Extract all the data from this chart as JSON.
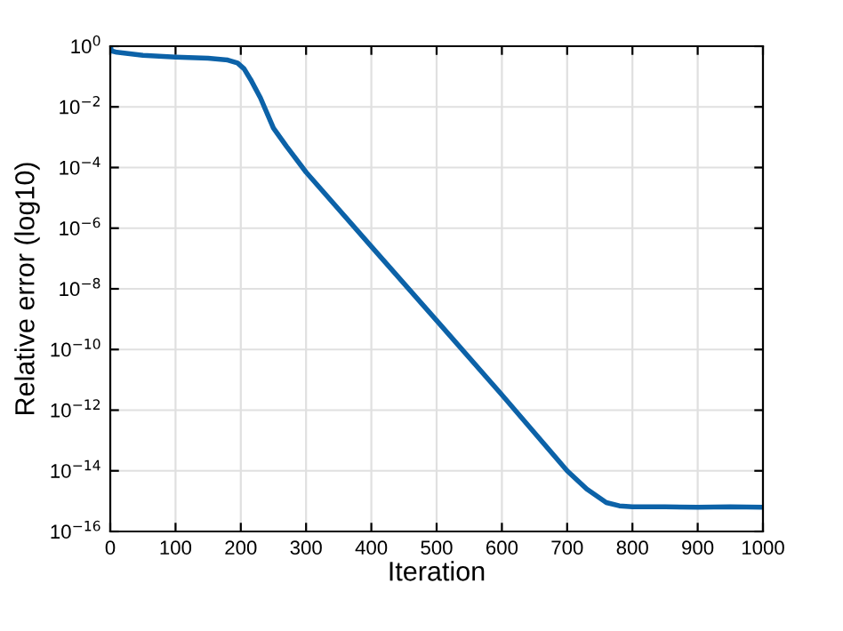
{
  "chart_data": {
    "type": "line",
    "xlabel": "Iteration",
    "ylabel": "Relative error (log10)",
    "log": "y",
    "grid": true,
    "marker": "none",
    "line_style": "solid",
    "x": [
      0,
      2,
      10,
      50,
      100,
      150,
      180,
      195,
      205,
      215,
      230,
      250,
      270,
      300,
      400,
      500,
      600,
      700,
      730,
      760,
      780,
      800,
      850,
      900,
      950,
      1000
    ],
    "series": [
      {
        "color": "#0c62a8",
        "values": [
          1,
          0.7,
          0.63,
          0.5,
          0.44,
          0.4,
          0.35,
          0.28,
          0.18,
          0.08,
          0.02,
          0.002,
          0.0005,
          7e-05,
          2.5e-07,
          9e-10,
          3.2e-12,
          1e-14,
          2.5e-15,
          9e-16,
          7e-16,
          6.5e-16,
          6.5e-16,
          6.3e-16,
          6.5e-16,
          6.3e-16
        ]
      }
    ],
    "xlim": [
      0,
      1000
    ],
    "xticks": [
      0,
      100,
      200,
      300,
      400,
      500,
      600,
      700,
      800,
      900,
      1000
    ],
    "ylim": [
      1e-16,
      1
    ],
    "yticks": [
      {
        "value": 1e-16,
        "label": "10$^{−16}$"
      },
      {
        "value": 1e-14,
        "label": "10$^{−14}$"
      },
      {
        "value": 1e-12,
        "label": "10$^{−12}$"
      },
      {
        "value": 1e-10,
        "label": "10$^{−10}$"
      },
      {
        "value": 1e-08,
        "label": "10$^{−8}$"
      },
      {
        "value": 1e-06,
        "label": "10$^{−6}$"
      },
      {
        "value": 0.0001,
        "label": "10$^{−4}$"
      },
      {
        "value": 0.01,
        "label": "10$^{−2}$"
      },
      {
        "value": 1,
        "label": "10$^{0}$"
      }
    ]
  }
}
